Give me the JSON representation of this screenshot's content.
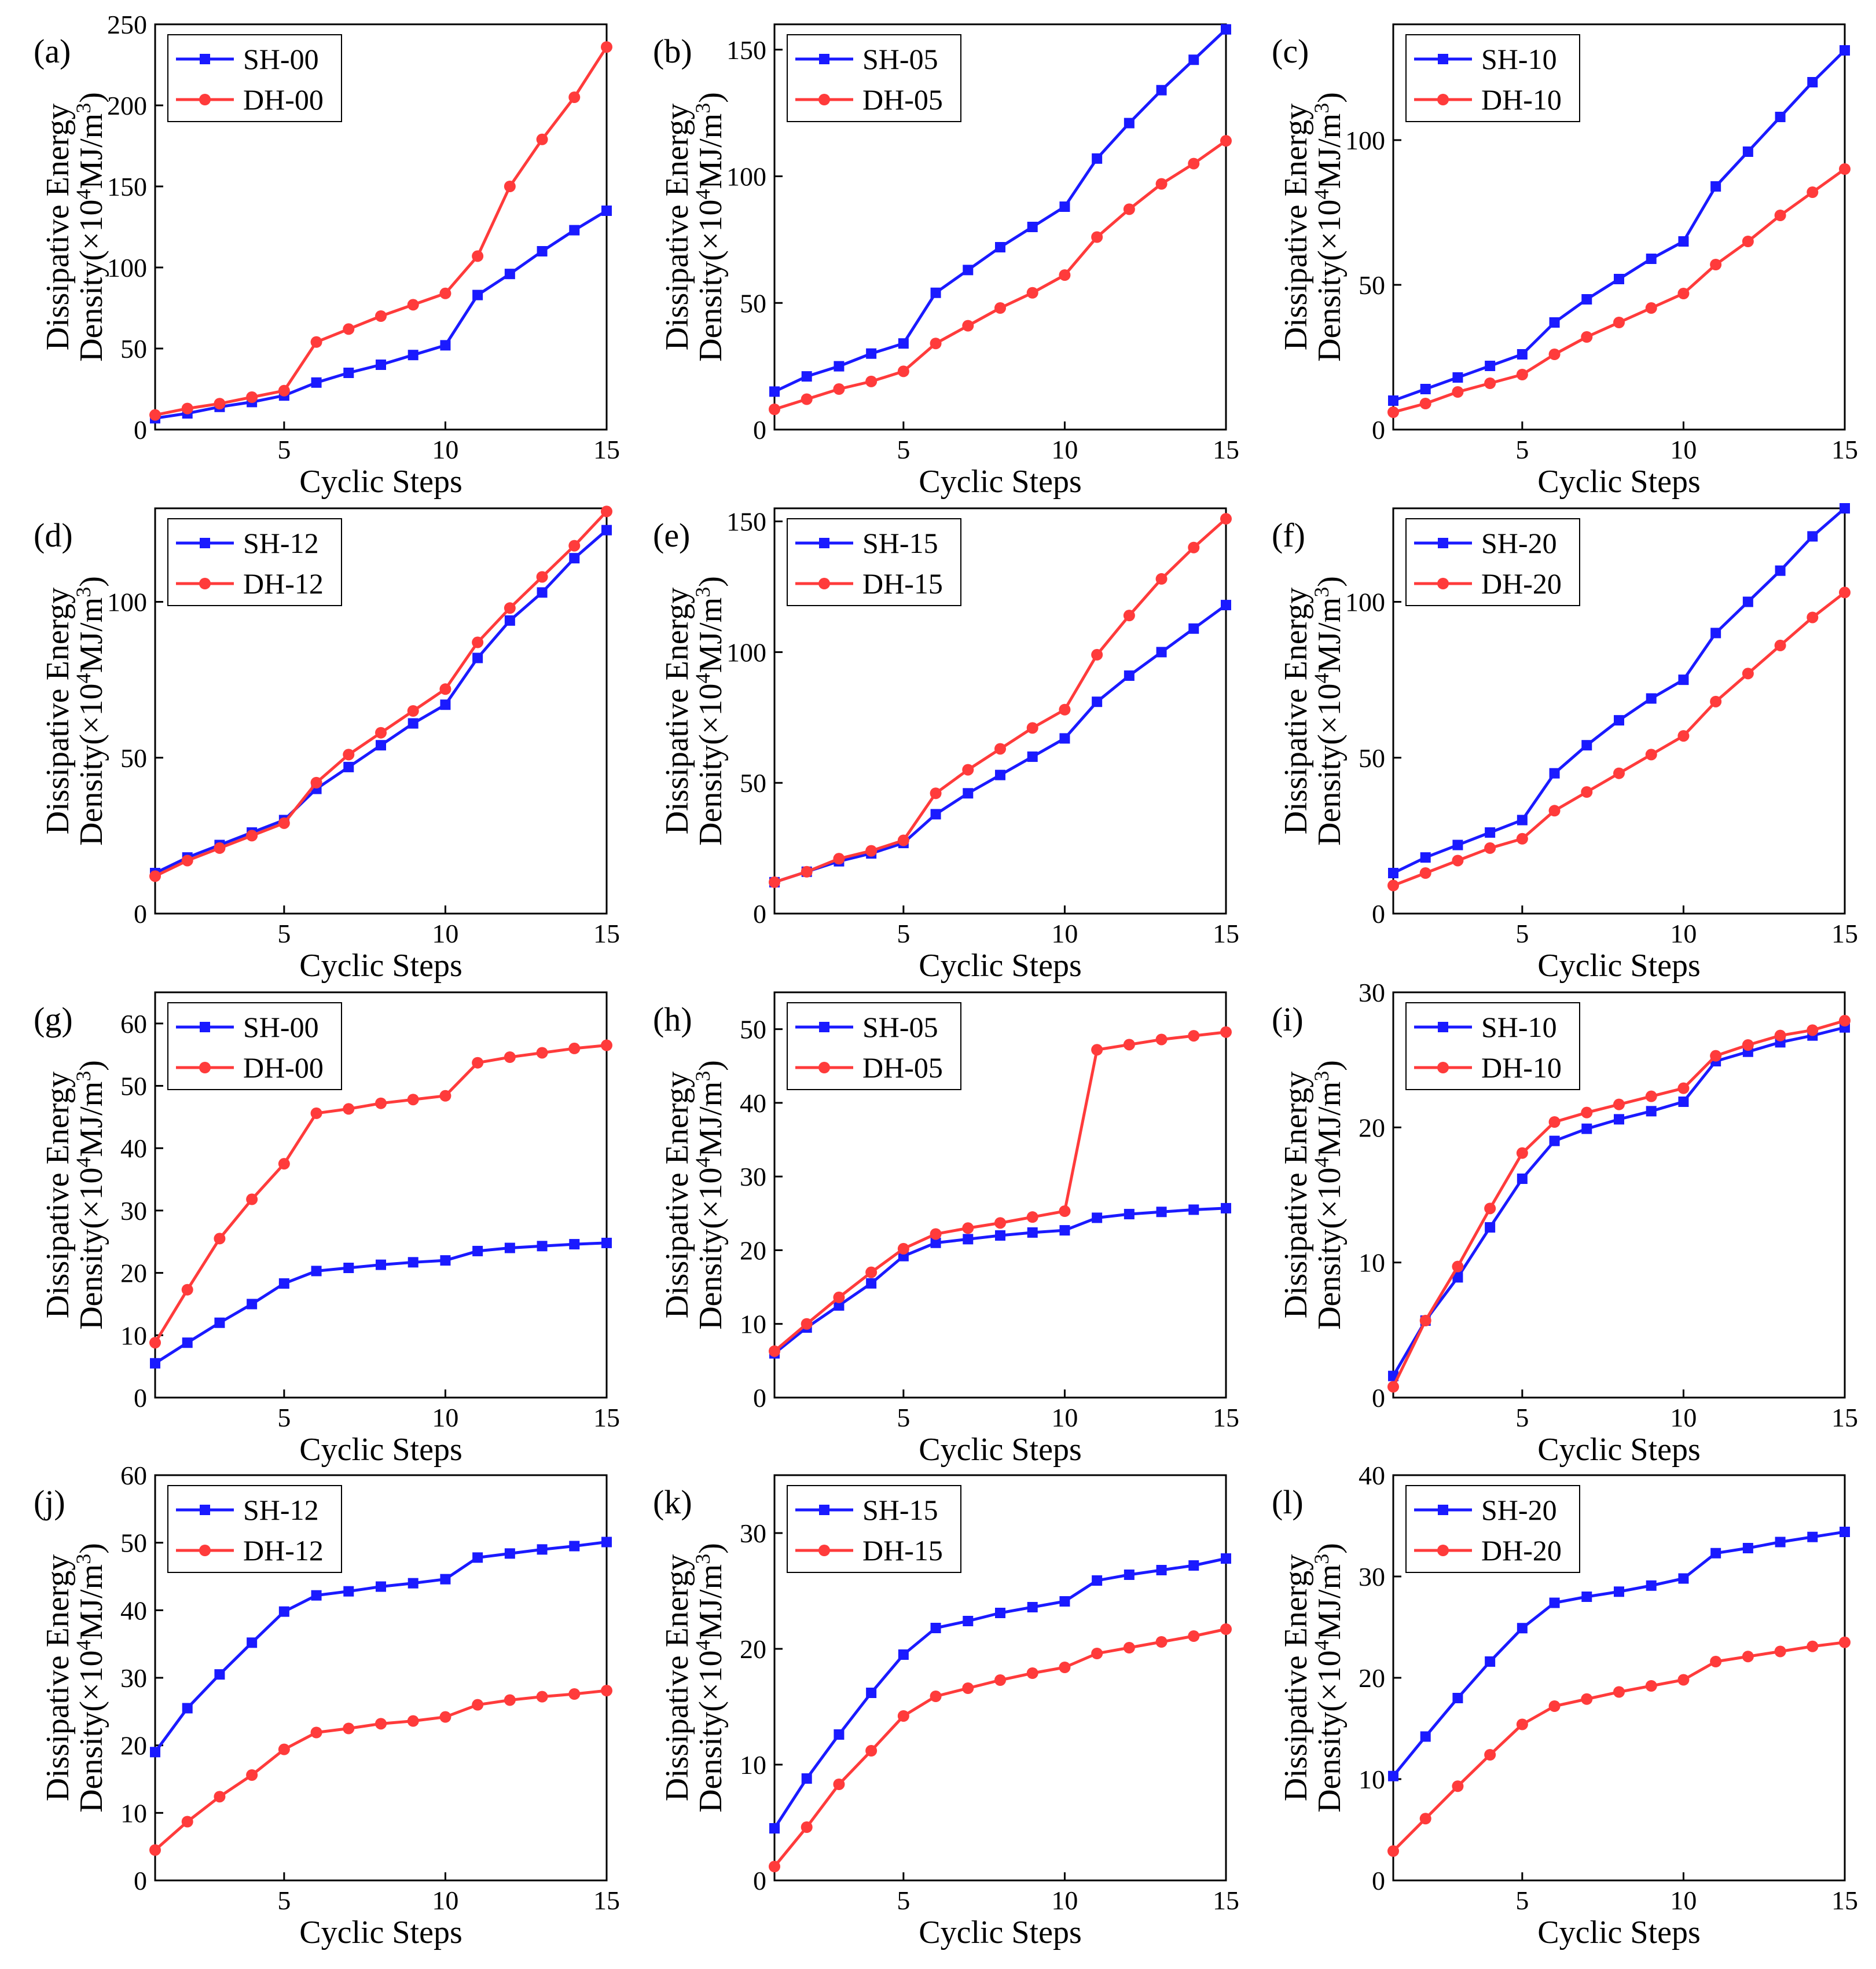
{
  "colors": {
    "sh": "#1a1aff",
    "dh": "#ff3b3b",
    "axis": "#000000"
  },
  "chart_data": [
    {
      "type": "line",
      "panel": "(a)",
      "xlabel": "Cyclic Steps",
      "ylabel": [
        "Dissipative Energy",
        "Density(×10",
        "4",
        "MJ/m",
        "3",
        ")"
      ],
      "xlim": [
        1,
        15
      ],
      "ylim": [
        0,
        250
      ],
      "xticks": [
        5,
        10,
        15
      ],
      "yticks": [
        0,
        50,
        100,
        150,
        200,
        250
      ],
      "x": [
        1,
        2,
        3,
        4,
        5,
        6,
        7,
        8,
        9,
        10,
        11,
        12,
        13,
        14,
        15
      ],
      "series": [
        {
          "name": "SH-00",
          "marker": "square",
          "values": [
            7,
            10,
            14,
            17,
            21,
            29,
            35,
            40,
            46,
            52,
            83,
            96,
            110,
            123,
            135
          ]
        },
        {
          "name": "DH-00",
          "marker": "circle",
          "values": [
            9,
            13,
            16,
            20,
            24,
            54,
            62,
            70,
            77,
            84,
            107,
            150,
            179,
            205,
            236
          ]
        }
      ]
    },
    {
      "type": "line",
      "panel": "(b)",
      "xlabel": "Cyclic Steps",
      "ylabel": [
        "Dissipative Energy",
        "Density(×10",
        "4",
        "MJ/m",
        "3",
        ")"
      ],
      "xlim": [
        1,
        15
      ],
      "ylim": [
        0,
        160
      ],
      "xticks": [
        5,
        10,
        15
      ],
      "yticks": [
        0,
        50,
        100,
        150
      ],
      "x": [
        1,
        2,
        3,
        4,
        5,
        6,
        7,
        8,
        9,
        10,
        11,
        12,
        13,
        14,
        15
      ],
      "series": [
        {
          "name": "SH-05",
          "marker": "square",
          "values": [
            15,
            21,
            25,
            30,
            34,
            54,
            63,
            72,
            80,
            88,
            107,
            121,
            134,
            146,
            158
          ]
        },
        {
          "name": "DH-05",
          "marker": "circle",
          "values": [
            8,
            12,
            16,
            19,
            23,
            34,
            41,
            48,
            54,
            61,
            76,
            87,
            97,
            105,
            114
          ]
        }
      ]
    },
    {
      "type": "line",
      "panel": "(c)",
      "xlabel": "Cyclic Steps",
      "ylabel": [
        "Dissipative Energy",
        "Density(×10",
        "4",
        "MJ/m",
        "3",
        ")"
      ],
      "xlim": [
        1,
        15
      ],
      "ylim": [
        0,
        140
      ],
      "xticks": [
        5,
        10,
        15
      ],
      "yticks": [
        0,
        50,
        100
      ],
      "x": [
        1,
        2,
        3,
        4,
        5,
        6,
        7,
        8,
        9,
        10,
        11,
        12,
        13,
        14,
        15
      ],
      "series": [
        {
          "name": "SH-10",
          "marker": "square",
          "values": [
            10,
            14,
            18,
            22,
            26,
            37,
            45,
            52,
            59,
            65,
            84,
            96,
            108,
            120,
            131
          ]
        },
        {
          "name": "DH-10",
          "marker": "circle",
          "values": [
            6,
            9,
            13,
            16,
            19,
            26,
            32,
            37,
            42,
            47,
            57,
            65,
            74,
            82,
            90
          ]
        }
      ]
    },
    {
      "type": "line",
      "panel": "(d)",
      "xlabel": "Cyclic Steps",
      "ylabel": [
        "Dissipative Energy",
        "Density(×10",
        "4",
        "MJ/m",
        "3",
        ")"
      ],
      "xlim": [
        1,
        15
      ],
      "ylim": [
        0,
        130
      ],
      "xticks": [
        5,
        10,
        15
      ],
      "yticks": [
        0,
        50,
        100
      ],
      "x": [
        1,
        2,
        3,
        4,
        5,
        6,
        7,
        8,
        9,
        10,
        11,
        12,
        13,
        14,
        15
      ],
      "series": [
        {
          "name": "SH-12",
          "marker": "square",
          "values": [
            13,
            18,
            22,
            26,
            30,
            40,
            47,
            54,
            61,
            67,
            82,
            94,
            103,
            114,
            123
          ]
        },
        {
          "name": "DH-12",
          "marker": "circle",
          "values": [
            12,
            17,
            21,
            25,
            29,
            42,
            51,
            58,
            65,
            72,
            87,
            98,
            108,
            118,
            129
          ]
        }
      ]
    },
    {
      "type": "line",
      "panel": "(e)",
      "xlabel": "Cyclic Steps",
      "ylabel": [
        "Dissipative Energy",
        "Density(×10",
        "4",
        "MJ/m",
        "3",
        ")"
      ],
      "xlim": [
        1,
        15
      ],
      "ylim": [
        0,
        155
      ],
      "xticks": [
        5,
        10,
        15
      ],
      "yticks": [
        0,
        50,
        100,
        150
      ],
      "x": [
        1,
        2,
        3,
        4,
        5,
        6,
        7,
        8,
        9,
        10,
        11,
        12,
        13,
        14,
        15
      ],
      "series": [
        {
          "name": "SH-15",
          "marker": "square",
          "values": [
            12,
            16,
            20,
            23,
            27,
            38,
            46,
            53,
            60,
            67,
            81,
            91,
            100,
            109,
            118
          ]
        },
        {
          "name": "DH-15",
          "marker": "circle",
          "values": [
            12,
            16,
            21,
            24,
            28,
            46,
            55,
            63,
            71,
            78,
            99,
            114,
            128,
            140,
            151
          ]
        }
      ]
    },
    {
      "type": "line",
      "panel": "(f)",
      "xlabel": "Cyclic Steps",
      "ylabel": [
        "Dissipative Energy",
        "Density(×10",
        "4",
        "MJ/m",
        "3",
        ")"
      ],
      "xlim": [
        1,
        15
      ],
      "ylim": [
        0,
        130
      ],
      "xticks": [
        5,
        10,
        15
      ],
      "yticks": [
        0,
        50,
        100
      ],
      "x": [
        1,
        2,
        3,
        4,
        5,
        6,
        7,
        8,
        9,
        10,
        11,
        12,
        13,
        14,
        15
      ],
      "series": [
        {
          "name": "SH-20",
          "marker": "square",
          "values": [
            13,
            18,
            22,
            26,
            30,
            45,
            54,
            62,
            69,
            75,
            90,
            100,
            110,
            121,
            130
          ]
        },
        {
          "name": "DH-20",
          "marker": "circle",
          "values": [
            9,
            13,
            17,
            21,
            24,
            33,
            39,
            45,
            51,
            57,
            68,
            77,
            86,
            95,
            103
          ]
        }
      ]
    },
    {
      "type": "line",
      "panel": "(g)",
      "xlabel": "Cyclic Steps",
      "ylabel": [
        "Dissipative Energy",
        "Density(×10",
        "4",
        "MJ/m",
        "3",
        ")"
      ],
      "xlim": [
        1,
        15
      ],
      "ylim": [
        0,
        65
      ],
      "xticks": [
        5,
        10,
        15
      ],
      "yticks": [
        0,
        10,
        20,
        30,
        40,
        50,
        60
      ],
      "x": [
        1,
        2,
        3,
        4,
        5,
        6,
        7,
        8,
        9,
        10,
        11,
        12,
        13,
        14,
        15
      ],
      "series": [
        {
          "name": "SH-00",
          "marker": "square",
          "values": [
            5.5,
            8.8,
            12,
            15,
            18.3,
            20.3,
            20.8,
            21.3,
            21.7,
            22,
            23.5,
            24,
            24.3,
            24.6,
            24.8
          ]
        },
        {
          "name": "DH-00",
          "marker": "circle",
          "values": [
            8.8,
            17.3,
            25.5,
            31.8,
            37.5,
            45.6,
            46.3,
            47.2,
            47.8,
            48.4,
            53.7,
            54.6,
            55.3,
            56,
            56.5
          ]
        }
      ]
    },
    {
      "type": "line",
      "panel": "(h)",
      "xlabel": "Cyclic Steps",
      "ylabel": [
        "Dissipative Energy",
        "Density(×10",
        "4",
        "MJ/m",
        "3",
        ")"
      ],
      "xlim": [
        1,
        15
      ],
      "ylim": [
        0,
        55
      ],
      "xticks": [
        5,
        10,
        15
      ],
      "yticks": [
        0,
        10,
        20,
        30,
        40,
        50
      ],
      "x": [
        1,
        2,
        3,
        4,
        5,
        6,
        7,
        8,
        9,
        10,
        11,
        12,
        13,
        14,
        15
      ],
      "series": [
        {
          "name": "SH-05",
          "marker": "square",
          "values": [
            6,
            9.5,
            12.5,
            15.5,
            19.2,
            21,
            21.5,
            22,
            22.4,
            22.7,
            24.4,
            24.9,
            25.2,
            25.5,
            25.7
          ]
        },
        {
          "name": "DH-05",
          "marker": "circle",
          "values": [
            6.3,
            10,
            13.6,
            17,
            20.2,
            22.2,
            23,
            23.7,
            24.5,
            25.3,
            47.2,
            47.9,
            48.6,
            49.1,
            49.6
          ]
        }
      ]
    },
    {
      "type": "line",
      "panel": "(i)",
      "xlabel": "Cyclic Steps",
      "ylabel": [
        "Dissipative Energy",
        "Density(×10",
        "4",
        "MJ/m",
        "3",
        ")"
      ],
      "xlim": [
        1,
        15
      ],
      "ylim": [
        0,
        30
      ],
      "xticks": [
        5,
        10,
        15
      ],
      "yticks": [
        0,
        10,
        20,
        30
      ],
      "x": [
        1,
        2,
        3,
        4,
        5,
        6,
        7,
        8,
        9,
        10,
        11,
        12,
        13,
        14,
        15
      ],
      "series": [
        {
          "name": "SH-10",
          "marker": "square",
          "values": [
            1.6,
            5.7,
            8.9,
            12.6,
            16.2,
            19,
            19.9,
            20.6,
            21.2,
            21.9,
            24.9,
            25.6,
            26.3,
            26.8,
            27.4
          ]
        },
        {
          "name": "DH-10",
          "marker": "circle",
          "values": [
            0.8,
            5.7,
            9.7,
            14,
            18.1,
            20.4,
            21.1,
            21.7,
            22.3,
            22.9,
            25.3,
            26.1,
            26.8,
            27.2,
            27.9
          ]
        }
      ]
    },
    {
      "type": "line",
      "panel": "(j)",
      "xlabel": "Cyclic Steps",
      "ylabel": [
        "Dissipative Energy",
        "Density(×10",
        "4",
        "MJ/m",
        "3",
        ")"
      ],
      "xlim": [
        1,
        15
      ],
      "ylim": [
        0,
        60
      ],
      "xticks": [
        5,
        10,
        15
      ],
      "yticks": [
        0,
        10,
        20,
        30,
        40,
        50,
        60
      ],
      "x": [
        1,
        2,
        3,
        4,
        5,
        6,
        7,
        8,
        9,
        10,
        11,
        12,
        13,
        14,
        15
      ],
      "series": [
        {
          "name": "SH-12",
          "marker": "square",
          "values": [
            19,
            25.5,
            30.5,
            35.2,
            39.8,
            42.2,
            42.8,
            43.5,
            44,
            44.6,
            47.8,
            48.4,
            49,
            49.5,
            50.1
          ]
        },
        {
          "name": "DH-12",
          "marker": "circle",
          "values": [
            4.5,
            8.7,
            12.4,
            15.6,
            19.4,
            21.9,
            22.5,
            23.2,
            23.6,
            24.2,
            26,
            26.7,
            27.2,
            27.6,
            28.1
          ]
        }
      ]
    },
    {
      "type": "line",
      "panel": "(k)",
      "xlabel": "Cyclic Steps",
      "ylabel": [
        "Dissipative Energy",
        "Density(×10",
        "4",
        "MJ/m",
        "3",
        ")"
      ],
      "xlim": [
        1,
        15
      ],
      "ylim": [
        0,
        35
      ],
      "xticks": [
        5,
        10,
        15
      ],
      "yticks": [
        0,
        10,
        20,
        30
      ],
      "x": [
        1,
        2,
        3,
        4,
        5,
        6,
        7,
        8,
        9,
        10,
        11,
        12,
        13,
        14,
        15
      ],
      "series": [
        {
          "name": "SH-15",
          "marker": "square",
          "values": [
            4.5,
            8.8,
            12.6,
            16.2,
            19.5,
            21.8,
            22.4,
            23.1,
            23.6,
            24.1,
            25.9,
            26.4,
            26.8,
            27.2,
            27.8
          ]
        },
        {
          "name": "DH-15",
          "marker": "circle",
          "values": [
            1.2,
            4.6,
            8.3,
            11.2,
            14.2,
            15.9,
            16.6,
            17.3,
            17.9,
            18.4,
            19.6,
            20.1,
            20.6,
            21.1,
            21.7
          ]
        }
      ]
    },
    {
      "type": "line",
      "panel": "(l)",
      "xlabel": "Cyclic Steps",
      "ylabel": [
        "Dissipative Energy",
        "Density(×10",
        "4",
        "MJ/m",
        "3",
        ")"
      ],
      "xlim": [
        1,
        15
      ],
      "ylim": [
        0,
        40
      ],
      "xticks": [
        5,
        10,
        15
      ],
      "yticks": [
        0,
        10,
        20,
        30,
        40
      ],
      "x": [
        1,
        2,
        3,
        4,
        5,
        6,
        7,
        8,
        9,
        10,
        11,
        12,
        13,
        14,
        15
      ],
      "series": [
        {
          "name": "SH-20",
          "marker": "square",
          "values": [
            10.3,
            14.2,
            18,
            21.6,
            24.9,
            27.4,
            28,
            28.5,
            29.1,
            29.8,
            32.3,
            32.8,
            33.4,
            33.9,
            34.4
          ]
        },
        {
          "name": "DH-20",
          "marker": "circle",
          "values": [
            2.9,
            6.1,
            9.3,
            12.4,
            15.4,
            17.2,
            17.9,
            18.6,
            19.2,
            19.8,
            21.6,
            22.1,
            22.6,
            23.1,
            23.5
          ]
        }
      ]
    }
  ]
}
